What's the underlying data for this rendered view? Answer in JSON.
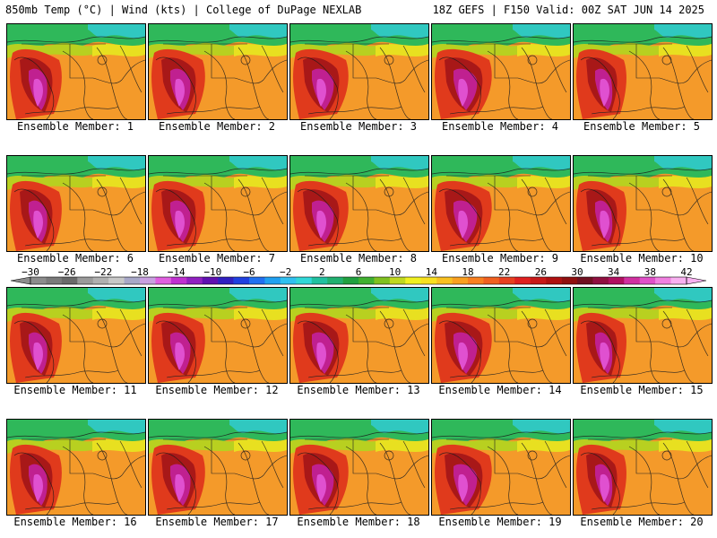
{
  "header": {
    "left": "850mb Temp (°C) | Wind (kts) | College of DuPage NEXLAB",
    "right": "18Z GEFS | F150 Valid: 00Z SAT JUN 14 2025"
  },
  "panels": [
    {
      "label": "Ensemble Member: 1"
    },
    {
      "label": "Ensemble Member: 2"
    },
    {
      "label": "Ensemble Member: 3"
    },
    {
      "label": "Ensemble Member: 4"
    },
    {
      "label": "Ensemble Member: 5"
    },
    {
      "label": "Ensemble Member: 6"
    },
    {
      "label": "Ensemble Member: 7"
    },
    {
      "label": "Ensemble Member: 8"
    },
    {
      "label": "Ensemble Member: 9"
    },
    {
      "label": "Ensemble Member: 10"
    },
    {
      "label": "Ensemble Member: 11"
    },
    {
      "label": "Ensemble Member: 12"
    },
    {
      "label": "Ensemble Member: 13"
    },
    {
      "label": "Ensemble Member: 14"
    },
    {
      "label": "Ensemble Member: 15"
    },
    {
      "label": "Ensemble Member: 16"
    },
    {
      "label": "Ensemble Member: 17"
    },
    {
      "label": "Ensemble Member: 18"
    },
    {
      "label": "Ensemble Member: 19"
    },
    {
      "label": "Ensemble Member: 20"
    }
  ],
  "colorbar": {
    "tick_labels": [
      "−30",
      "−26",
      "−22",
      "−18",
      "−14",
      "−10",
      "−6",
      "−2",
      "2",
      "6",
      "10",
      "14",
      "18",
      "22",
      "26",
      "30",
      "34",
      "38",
      "42"
    ],
    "colors": [
      "#8c8c8c",
      "#7a7a7a",
      "#6a6a6a",
      "#9a9a9a",
      "#b0b0b0",
      "#c8c8c8",
      "#a8a8c8",
      "#c8a0e0",
      "#e060e0",
      "#c030d0",
      "#9020c0",
      "#6010b0",
      "#3020c0",
      "#2040e0",
      "#2070f0",
      "#20a0f0",
      "#30c0f0",
      "#30d8d8",
      "#20c0a0",
      "#20b070",
      "#20a040",
      "#40b030",
      "#80c020",
      "#c0d820",
      "#f0f020",
      "#f8e020",
      "#f8c020",
      "#f8a020",
      "#f88020",
      "#f06020",
      "#e84020",
      "#e02020",
      "#c81818",
      "#b01010",
      "#901010",
      "#701020",
      "#901040",
      "#b01060",
      "#d030a0",
      "#e050c8",
      "#f080e0",
      "#f8b0f0"
    ]
  }
}
